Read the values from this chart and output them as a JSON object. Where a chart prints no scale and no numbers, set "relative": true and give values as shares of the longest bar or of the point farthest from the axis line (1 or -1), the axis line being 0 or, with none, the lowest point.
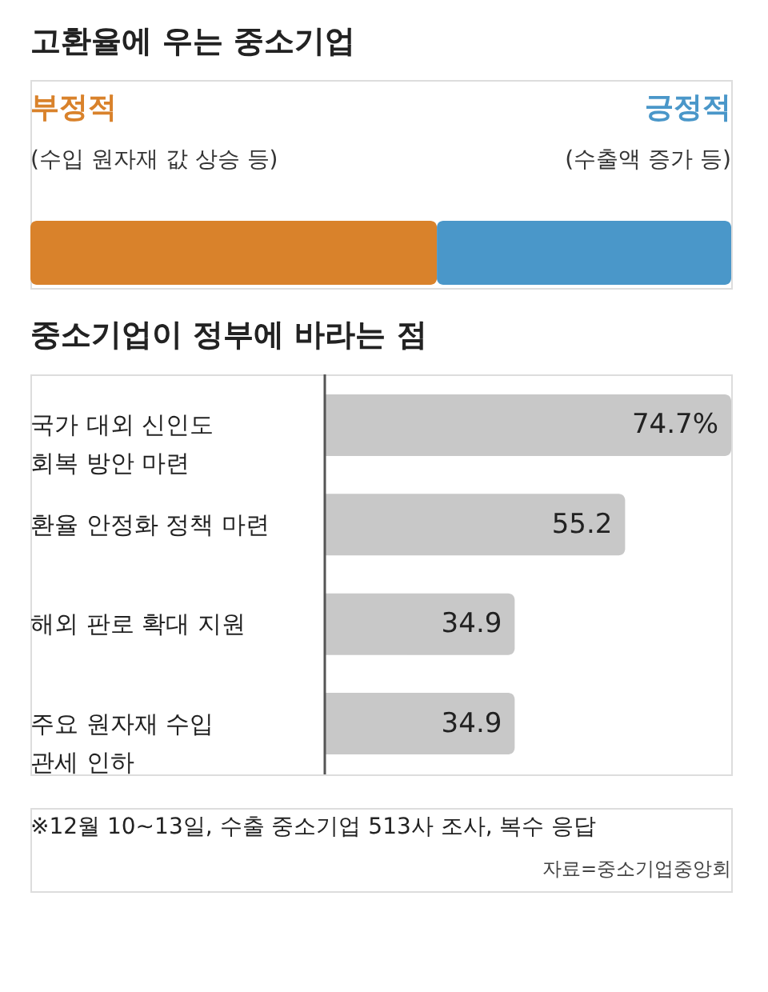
{
  "chart_data": [
    {
      "type": "bar",
      "orientation": "horizontal",
      "stacked": true,
      "relative": true,
      "title": "고환율에 우는 중소기업",
      "categories": [
        null
      ],
      "series": [
        {
          "name": "부정적",
          "color": "#d9822b",
          "values": [
            0.58
          ]
        },
        {
          "name": "긍정적",
          "color": "#4a97c9",
          "values": [
            0.42
          ]
        }
      ],
      "annotations": [
        "(수입 원자재 값 상승 등)",
        "(수출액 증가 등)"
      ]
    },
    {
      "type": "bar",
      "orientation": "horizontal",
      "title": "중소기업이 정부에 바라는 점",
      "categories": [
        "국가 대외 신인도\n회복 방안 마련",
        "환율 안정화 정책 마련",
        "해외 판로 확대 지원",
        "주요 원자재 수입\n관세 인하"
      ],
      "values": [
        74.7,
        55.2,
        34.9,
        34.9
      ],
      "color": "#c8c8c8",
      "value_labels": [
        "74.7%",
        "55.2",
        "34.9",
        "34.9"
      ],
      "annotations": [
        "※12월 10~13일, 수출 중소기업 513사 조사, 복수 응답",
        "자료=중소기업중앙회"
      ]
    }
  ]
}
